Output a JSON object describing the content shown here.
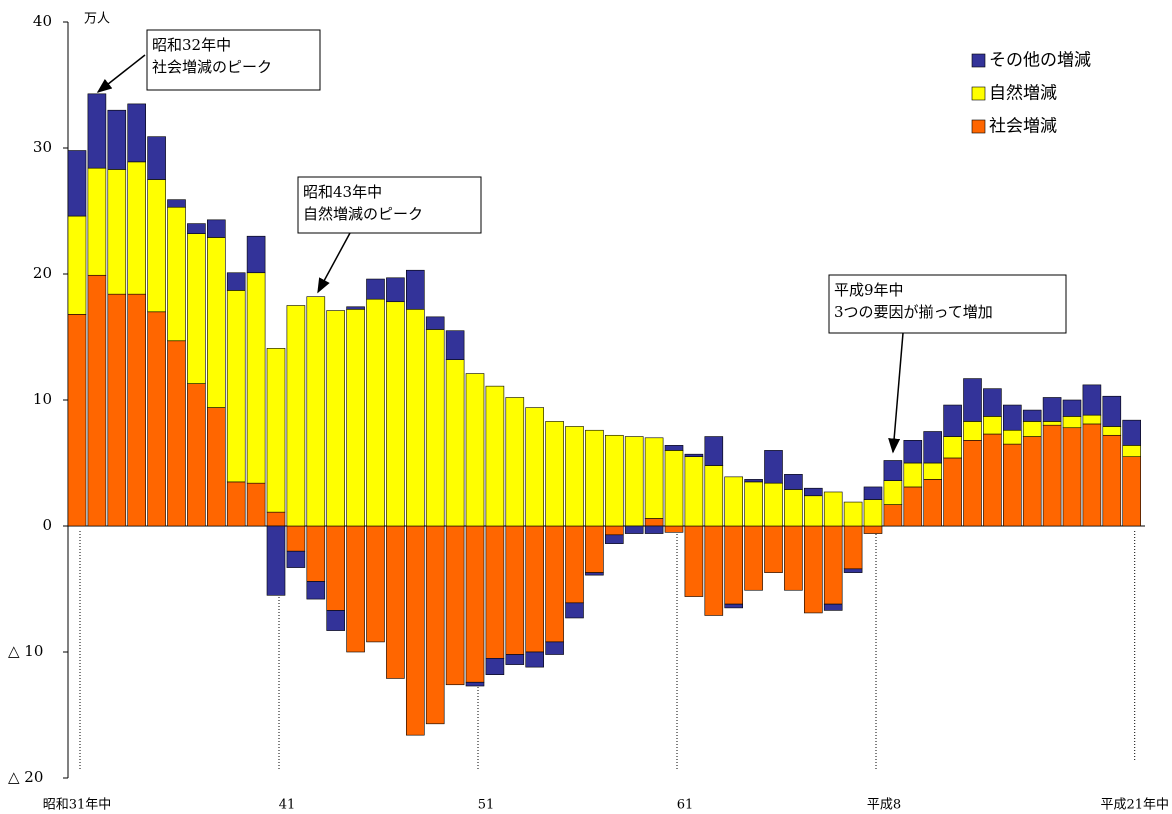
{
  "chart_data": {
    "type": "stacked_bar",
    "y_unit": "万人",
    "categories": [
      "昭和31年中",
      null,
      null,
      null,
      null,
      null,
      null,
      null,
      null,
      null,
      "41",
      null,
      null,
      null,
      null,
      null,
      null,
      null,
      null,
      null,
      "51",
      null,
      null,
      null,
      null,
      null,
      null,
      null,
      null,
      null,
      "61",
      null,
      null,
      null,
      null,
      null,
      null,
      null,
      null,
      null,
      "平成8",
      null,
      null,
      null,
      null,
      null,
      null,
      null,
      null,
      null,
      null,
      null,
      null,
      "平成21年中"
    ],
    "series": [
      {
        "name": "社会増減",
        "color": "#ff6600",
        "values": [
          16.8,
          19.9,
          18.4,
          18.4,
          17.0,
          14.7,
          11.3,
          9.4,
          3.5,
          3.4,
          1.1,
          -2.0,
          -4.4,
          -6.7,
          -10.0,
          -9.2,
          -12.1,
          -16.6,
          -15.7,
          -12.6,
          -12.4,
          -10.5,
          -10.2,
          -10.0,
          -9.2,
          -6.1,
          -3.7,
          -0.7,
          0,
          0.6,
          -0.5,
          -5.6,
          -7.1,
          -6.2,
          -5.1,
          -3.7,
          -5.1,
          -6.9,
          -6.2,
          -3.4,
          -0.6,
          1.7,
          3.1,
          3.7,
          5.4,
          6.8,
          7.3,
          6.5,
          7.1,
          8.0,
          7.8,
          8.1,
          7.2,
          5.5
        ]
      },
      {
        "name": "自然増減",
        "color": "#ffff00",
        "values": [
          7.8,
          8.5,
          9.9,
          10.5,
          10.5,
          10.6,
          11.9,
          13.5,
          15.2,
          16.7,
          13.0,
          17.5,
          18.2,
          17.1,
          17.2,
          18.0,
          17.8,
          17.2,
          15.6,
          13.2,
          12.1,
          11.1,
          10.2,
          9.4,
          8.3,
          7.9,
          7.6,
          7.2,
          7.1,
          6.4,
          6.0,
          5.5,
          4.8,
          3.9,
          3.5,
          3.4,
          2.9,
          2.4,
          2.7,
          1.9,
          2.1,
          1.9,
          1.9,
          1.3,
          1.7,
          1.5,
          1.4,
          1.1,
          1.2,
          0.3,
          0.9,
          0.7,
          0.7,
          0.9
        ]
      },
      {
        "name": "その他の増減",
        "color": "#333399",
        "values": [
          5.2,
          5.9,
          4.7,
          4.6,
          3.4,
          0.6,
          0.8,
          1.4,
          1.4,
          2.9,
          -5.5,
          -1.3,
          -1.4,
          -1.6,
          0.2,
          1.6,
          1.9,
          3.1,
          1.0,
          2.3,
          -0.3,
          -1.3,
          -0.8,
          -1.2,
          -1.0,
          -1.2,
          -0.2,
          -0.7,
          -0.6,
          -0.6,
          0.4,
          0.2,
          2.3,
          -0.3,
          0.2,
          2.6,
          1.2,
          0.6,
          -0.5,
          -0.3,
          1.0,
          1.6,
          1.8,
          2.5,
          2.5,
          3.4,
          2.2,
          2.0,
          0.9,
          1.9,
          1.3,
          2.4,
          2.4,
          2.0
        ]
      }
    ],
    "ylim": [
      -20,
      40
    ],
    "yticks": [
      {
        "value": -20,
        "label": "△ 20"
      },
      {
        "value": -10,
        "label": "△ 10"
      },
      0,
      10,
      20,
      30,
      40
    ],
    "legend": "upper right",
    "annotations": [
      {
        "lines": [
          "昭和32年中",
          "社会増減のピーク"
        ]
      },
      {
        "lines": [
          "昭和43年中",
          "自然増減のピーク"
        ]
      },
      {
        "lines": [
          "平成9年中",
          "3つの要因が揃って増加"
        ]
      }
    ]
  }
}
